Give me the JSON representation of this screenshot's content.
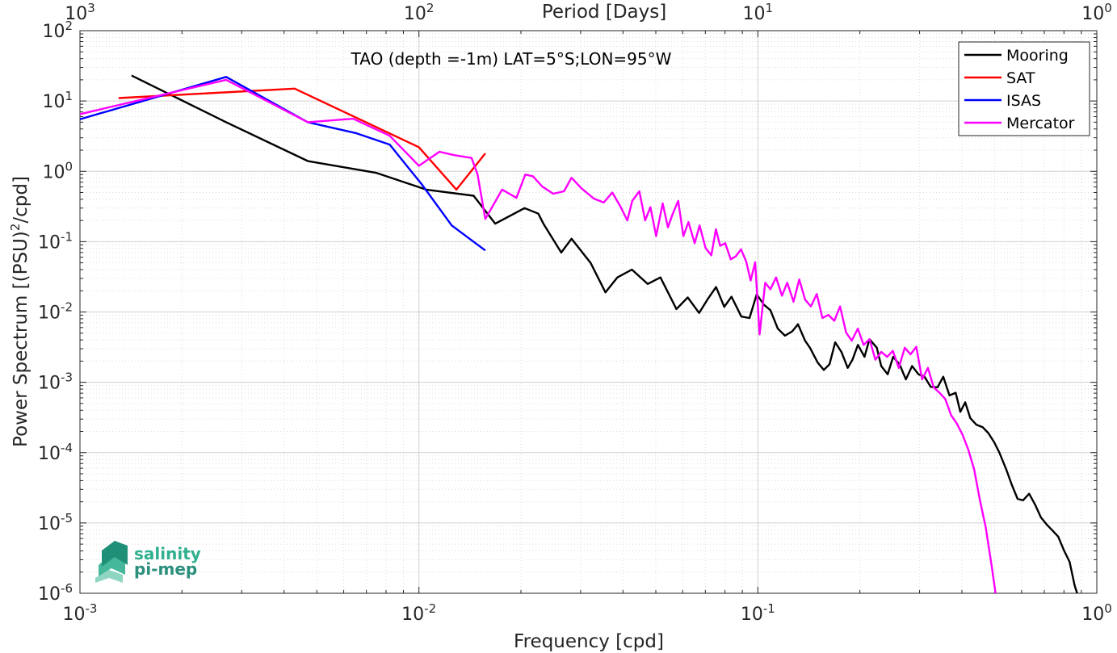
{
  "chart_data": {
    "type": "line",
    "title": "TAO (depth =-1m) LAT=5°S;LON=95°W",
    "xlabel": "Frequency [cpd]",
    "ylabel_main": "Power Spectrum [(PSU)",
    "ylabel_sup": "2",
    "ylabel_tail": "/cpd]",
    "top_xlabel": "Period [Days]",
    "xscale": "log",
    "yscale": "log",
    "xlim": [
      0.001,
      1
    ],
    "ylim": [
      1e-06,
      100
    ],
    "grid": true,
    "legend_position": "top-right",
    "x_ticks": [
      {
        "value": 0.001,
        "base": "10",
        "exp": "-3"
      },
      {
        "value": 0.01,
        "base": "10",
        "exp": "-2"
      },
      {
        "value": 0.1,
        "base": "10",
        "exp": "-1"
      },
      {
        "value": 1,
        "base": "10",
        "exp": "0"
      }
    ],
    "y_ticks": [
      {
        "value": 100,
        "base": "10",
        "exp": "2"
      },
      {
        "value": 10,
        "base": "10",
        "exp": "1"
      },
      {
        "value": 1,
        "base": "10",
        "exp": "0"
      },
      {
        "value": 0.1,
        "base": "10",
        "exp": "-1"
      },
      {
        "value": 0.01,
        "base": "10",
        "exp": "-2"
      },
      {
        "value": 0.001,
        "base": "10",
        "exp": "-3"
      },
      {
        "value": 0.0001,
        "base": "10",
        "exp": "-4"
      },
      {
        "value": 1e-05,
        "base": "10",
        "exp": "-5"
      },
      {
        "value": 1e-06,
        "base": "10",
        "exp": "-6"
      }
    ],
    "top_ticks": [
      {
        "value": 0.001,
        "base": "10",
        "exp": "3"
      },
      {
        "value": 0.01,
        "base": "10",
        "exp": "2"
      },
      {
        "value": 0.1,
        "base": "10",
        "exp": "1"
      },
      {
        "value": 1,
        "base": "10",
        "exp": "0"
      }
    ],
    "series": [
      {
        "name": "Mooring",
        "color": "#000000",
        "x": [
          0.00142,
          0.0027,
          0.0047,
          0.0075,
          0.0105,
          0.0145,
          0.0168,
          0.0205,
          0.0225,
          0.0233,
          0.0263,
          0.0282,
          0.0321,
          0.0355,
          0.0385,
          0.0425,
          0.0473,
          0.0516,
          0.0575,
          0.0621,
          0.0671,
          0.0713,
          0.0753,
          0.0796,
          0.0836,
          0.0894,
          0.0945,
          0.0992,
          0.1042,
          0.1089,
          0.1145,
          0.1202,
          0.1263,
          0.1313,
          0.1378,
          0.1424,
          0.1502,
          0.1565,
          0.1627,
          0.1691,
          0.1764,
          0.1841,
          0.1902,
          0.1973,
          0.2064,
          0.2134,
          0.2243,
          0.2312,
          0.2416,
          0.2506,
          0.2619,
          0.2734,
          0.2851,
          0.2978,
          0.3102,
          0.3234,
          0.3389,
          0.3523,
          0.3676,
          0.3835,
          0.3957,
          0.4091,
          0.4232,
          0.4411,
          0.4603,
          0.4787,
          0.4983,
          0.5161,
          0.5402,
          0.5612,
          0.5837,
          0.6061,
          0.6314,
          0.6583,
          0.6842,
          0.7114,
          0.7405,
          0.7692,
          0.7993,
          0.8312,
          0.8601,
          0.8812
        ],
        "y": [
          23,
          5,
          1.4,
          0.95,
          0.55,
          0.45,
          0.18,
          0.3,
          0.25,
          0.18,
          0.07,
          0.11,
          0.05,
          0.019,
          0.031,
          0.04,
          0.025,
          0.031,
          0.011,
          0.0161,
          0.0097,
          0.0155,
          0.0226,
          0.0118,
          0.0165,
          0.0086,
          0.0082,
          0.0178,
          0.0127,
          0.0106,
          0.0058,
          0.0046,
          0.0053,
          0.0067,
          0.0039,
          0.0031,
          0.0019,
          0.0015,
          0.0018,
          0.0037,
          0.0027,
          0.0016,
          0.0021,
          0.0034,
          0.0023,
          0.0041,
          0.0031,
          0.0017,
          0.0013,
          0.0023,
          0.0018,
          0.0011,
          0.0017,
          0.0013,
          0.0012,
          0.00086,
          0.00085,
          0.0012,
          0.00065,
          0.00071,
          0.00038,
          0.00052,
          0.00031,
          0.00025,
          0.00023,
          0.00019,
          0.00014,
          0.0001,
          5.8e-05,
          3.5e-05,
          2.2e-05,
          2.1e-05,
          2.6e-05,
          1.8e-05,
          1.2e-05,
          9.5e-06,
          7.8e-06,
          6.4e-06,
          4.1e-06,
          2.8e-06,
          1.3e-06,
          9e-07
        ]
      },
      {
        "name": "SAT",
        "color": "#ff0000",
        "x": [
          0.0013,
          0.0043,
          0.01,
          0.0129,
          0.0157
        ],
        "y": [
          11,
          15,
          2.2,
          0.55,
          1.8
        ]
      },
      {
        "name": "ISAS",
        "color": "#0000ff",
        "x": [
          0.001,
          0.0027,
          0.0047,
          0.0065,
          0.0082,
          0.0102,
          0.0125,
          0.0157
        ],
        "y": [
          5.5,
          22,
          5,
          3.5,
          2.4,
          0.65,
          0.17,
          0.075
        ]
      },
      {
        "name": "Mercator",
        "color": "#ff00ff",
        "x": [
          0.001,
          0.0027,
          0.0047,
          0.0064,
          0.0082,
          0.01,
          0.0115,
          0.0127,
          0.0143,
          0.0149,
          0.0157,
          0.0176,
          0.0194,
          0.0206,
          0.0217,
          0.0231,
          0.0249,
          0.0268,
          0.0282,
          0.0301,
          0.0328,
          0.0351,
          0.0372,
          0.0394,
          0.0412,
          0.0426,
          0.0447,
          0.0465,
          0.0482,
          0.0501,
          0.0524,
          0.0543,
          0.0561,
          0.0582,
          0.0603,
          0.0624,
          0.0651,
          0.0673,
          0.0701,
          0.0729,
          0.0752,
          0.0774,
          0.0801,
          0.0832,
          0.0861,
          0.0892,
          0.0924,
          0.0952,
          0.0982,
          0.1012,
          0.1051,
          0.1089,
          0.1132,
          0.1178,
          0.1221,
          0.1274,
          0.1325,
          0.1378,
          0.1434,
          0.1492,
          0.1551,
          0.1614,
          0.1681,
          0.1748,
          0.1821,
          0.1893,
          0.1972,
          0.2051,
          0.2135,
          0.2221,
          0.2314,
          0.2407,
          0.2502,
          0.2604,
          0.2713,
          0.2821,
          0.2934,
          0.3052,
          0.3175,
          0.3301,
          0.3434,
          0.3571,
          0.3716,
          0.3862,
          0.4015,
          0.4178,
          0.4345,
          0.4521,
          0.4705,
          0.4891,
          0.5043
        ],
        "y": [
          6.5,
          20,
          5,
          5.6,
          3.2,
          1.2,
          1.9,
          1.7,
          1.55,
          0.9,
          0.21,
          0.55,
          0.42,
          0.9,
          0.85,
          0.61,
          0.48,
          0.52,
          0.81,
          0.58,
          0.41,
          0.36,
          0.5,
          0.31,
          0.2,
          0.38,
          0.52,
          0.2,
          0.31,
          0.12,
          0.35,
          0.16,
          0.25,
          0.38,
          0.12,
          0.19,
          0.095,
          0.17,
          0.081,
          0.064,
          0.15,
          0.087,
          0.095,
          0.056,
          0.062,
          0.078,
          0.052,
          0.028,
          0.051,
          0.0048,
          0.026,
          0.021,
          0.031,
          0.017,
          0.026,
          0.014,
          0.029,
          0.015,
          0.012,
          0.018,
          0.0082,
          0.0091,
          0.0075,
          0.012,
          0.0051,
          0.0039,
          0.0058,
          0.0034,
          0.0041,
          0.0021,
          0.0027,
          0.0023,
          0.0028,
          0.0016,
          0.0031,
          0.0025,
          0.0032,
          0.0011,
          0.0016,
          0.00085,
          0.00071,
          0.00058,
          0.00034,
          0.00026,
          0.00018,
          0.00011,
          5.8e-05,
          2.1e-05,
          8.5e-06,
          2.5e-06,
          9e-07
        ]
      }
    ]
  },
  "logo": {
    "line1": "salinity",
    "line2": "pi-mep"
  }
}
